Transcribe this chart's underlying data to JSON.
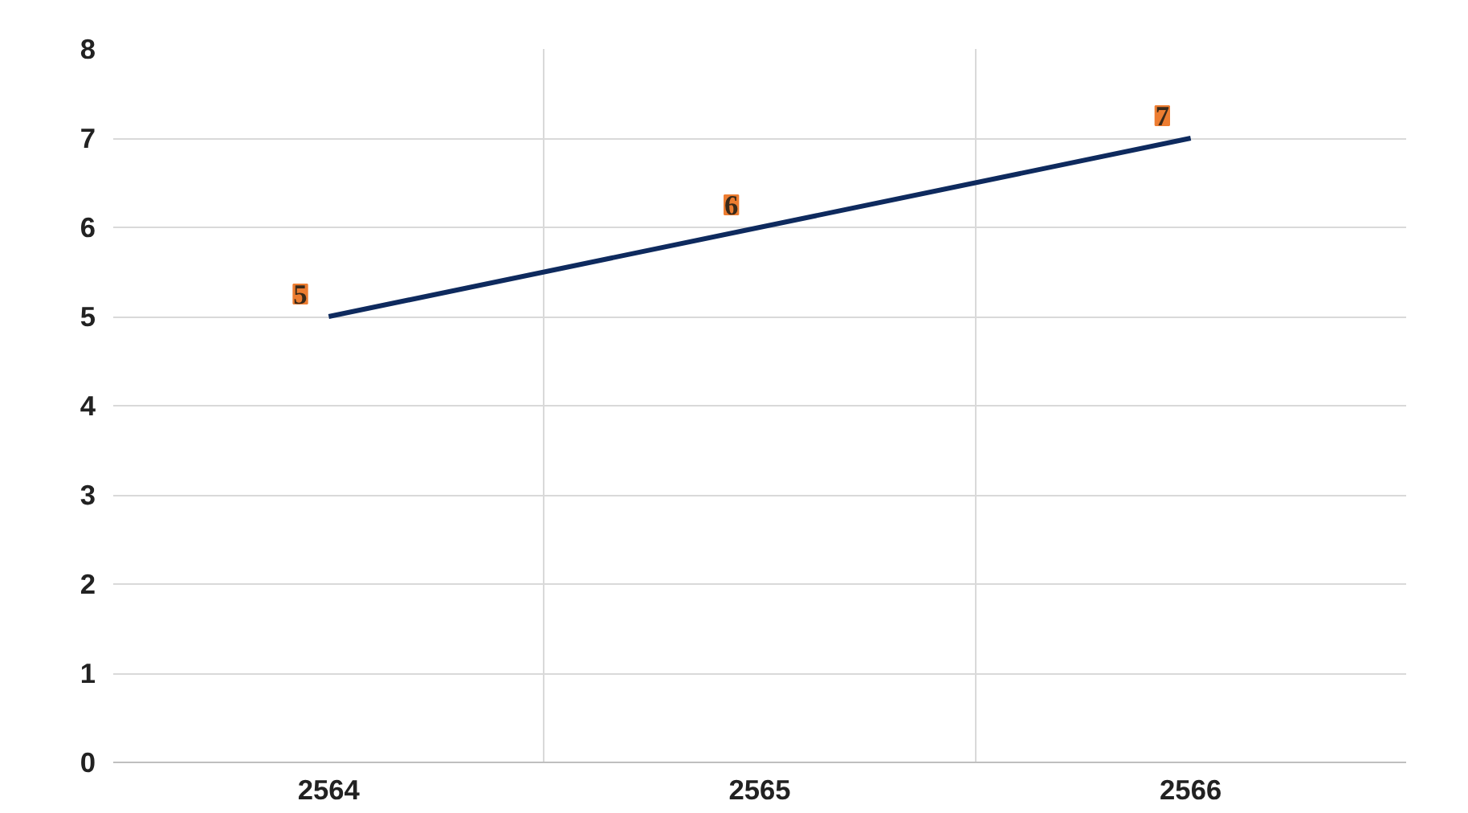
{
  "chart_data": {
    "type": "line",
    "categories": [
      "2564",
      "2565",
      "2566"
    ],
    "series": [
      {
        "color": "#0e2a5e",
        "values": [
          5,
          6,
          7
        ]
      }
    ],
    "ylim": [
      0,
      8
    ],
    "yticks": [
      0,
      1,
      2,
      3,
      4,
      5,
      6,
      7,
      8
    ],
    "grid": true,
    "data_labels": true,
    "marker": "none",
    "line_style": "solid"
  }
}
